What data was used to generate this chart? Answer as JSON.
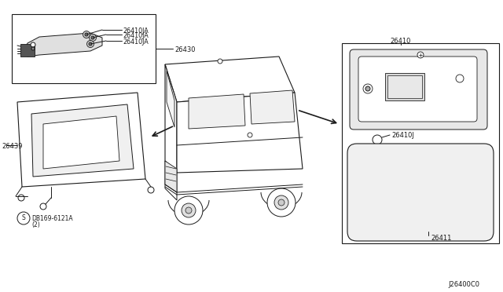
{
  "bg_color": "#ffffff",
  "line_color": "#1a1a1a",
  "diagram_code": "J26400C0",
  "labels": {
    "26410JA_1": "26410JA",
    "26410JA_2": "26410JA",
    "26410JA_3": "26410JA",
    "26430": "26430",
    "26439": "26439",
    "db169": "DB169-6121A",
    "db169_2": "(2)",
    "26410": "26410",
    "26410J": "26410J",
    "26411": "26411"
  },
  "font_size": 6.0,
  "lc": "#1a1a1a",
  "lw": 0.7
}
